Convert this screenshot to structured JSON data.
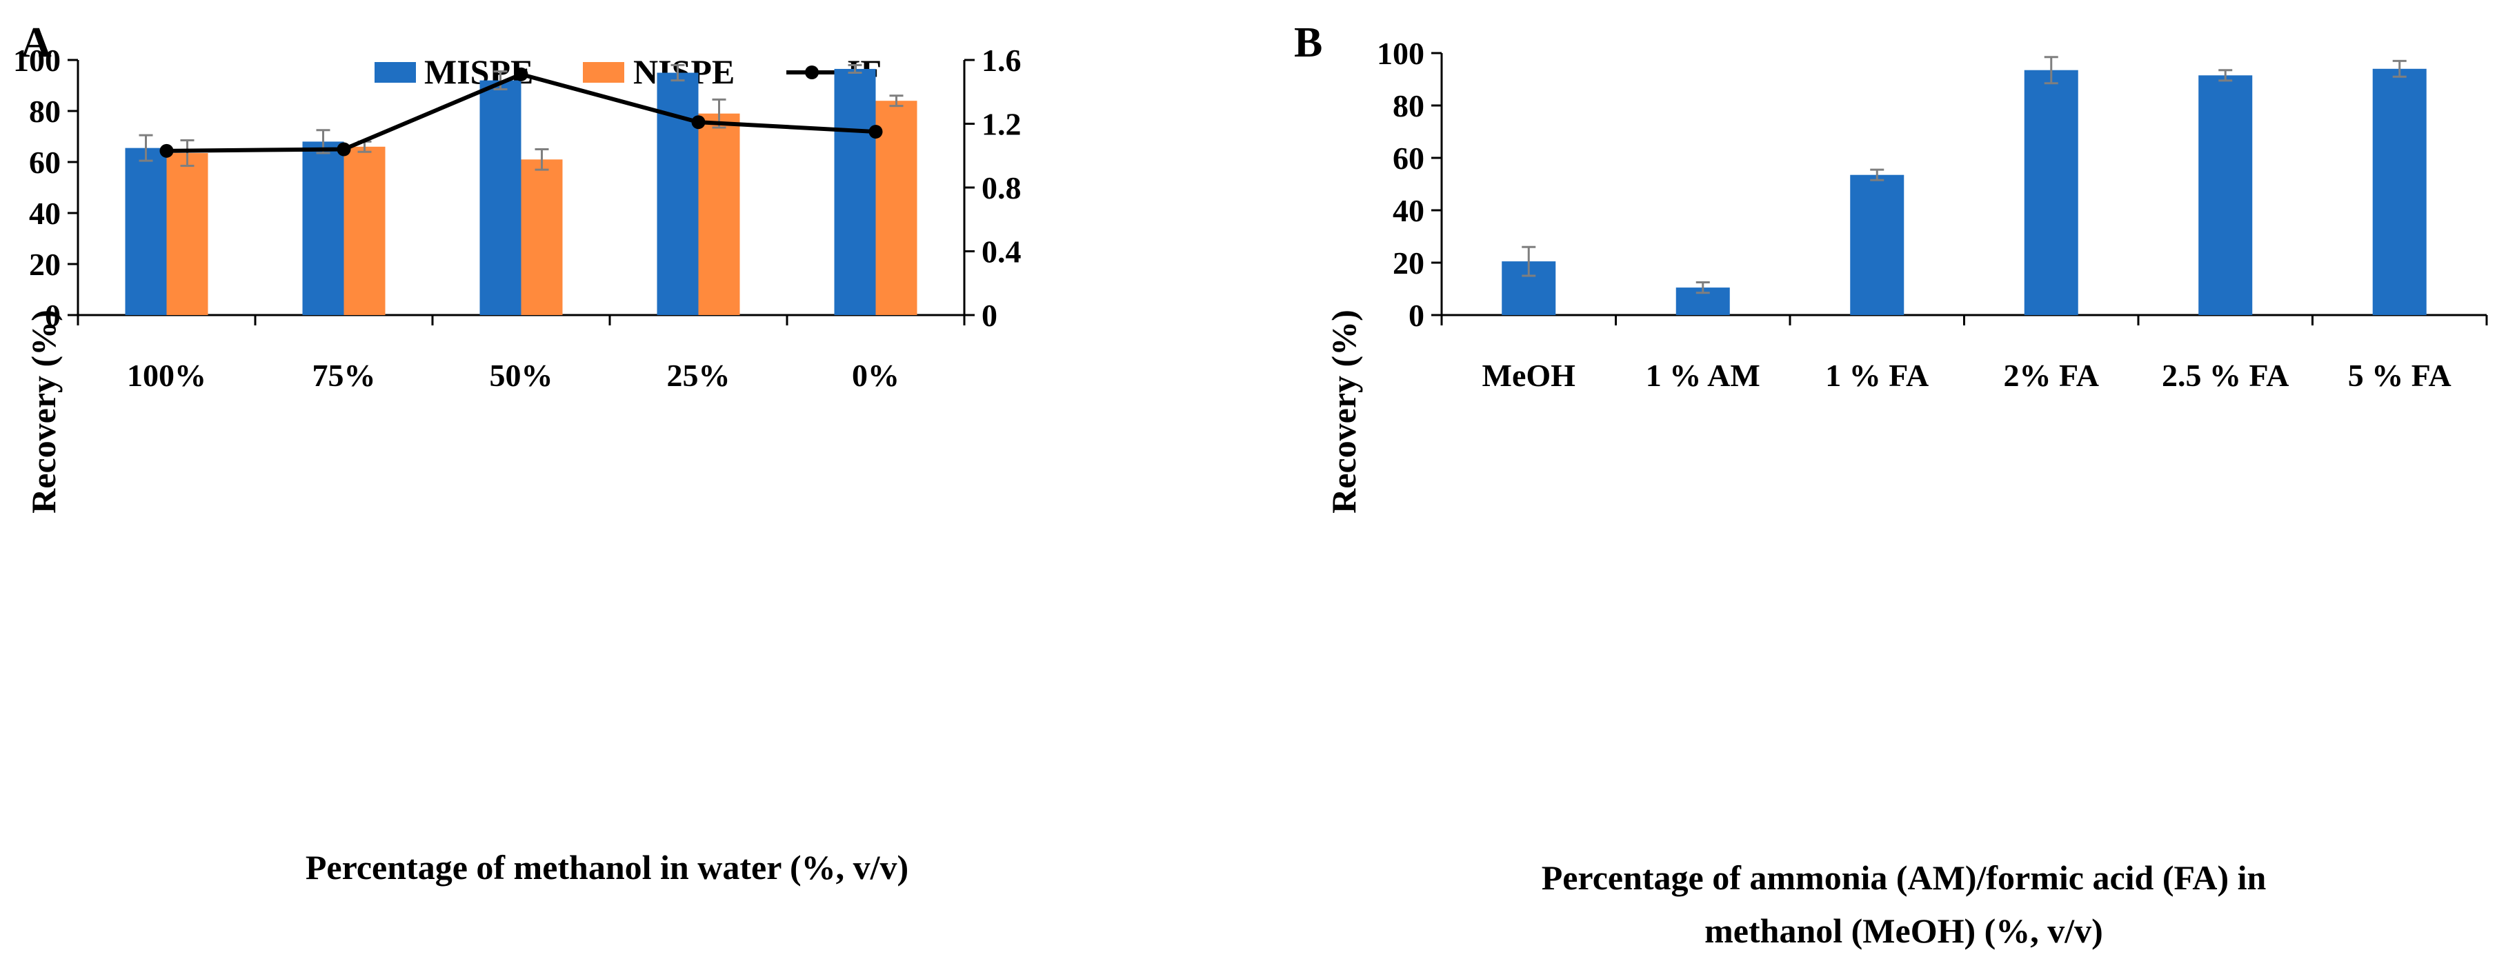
{
  "colors": {
    "mispe": "#1F6FC2",
    "nispe": "#FF8A3D",
    "if_line": "#000000",
    "bar_b": "#1F6FC2",
    "error_bar": "#7F7F7F",
    "axis": "#000000"
  },
  "chart_data": [
    {
      "panel_label": "A",
      "type": "bar",
      "title": "",
      "categories": [
        "100%",
        "75%",
        "50%",
        "25%",
        "0%"
      ],
      "series": [
        {
          "name": "MISPE",
          "values": [
            65.5,
            68,
            92,
            95,
            96.5
          ],
          "errors": [
            5,
            4.5,
            3.5,
            3,
            1.5
          ]
        },
        {
          "name": "NISPE",
          "values": [
            63.5,
            66,
            61,
            79,
            84
          ],
          "errors": [
            5,
            2,
            4,
            5.5,
            2
          ]
        }
      ],
      "line_series": {
        "name": "IF",
        "axis": "right",
        "values": [
          1.03,
          1.04,
          1.51,
          1.21,
          1.15
        ]
      },
      "legend": [
        "MISPE",
        "NISPE",
        "IF"
      ],
      "xlabel": "Percentage of methanol in water (%, v/v)",
      "ylabel": "Recovery (%)",
      "ylim": [
        0,
        100
      ],
      "yticks": [
        "0",
        "20",
        "40",
        "60",
        "80",
        "100"
      ],
      "y2lim": [
        0,
        1.6
      ],
      "y2ticks": [
        "0",
        "0.4",
        "0.8",
        "1.2",
        "1.6"
      ]
    },
    {
      "panel_label": "B",
      "type": "bar",
      "title": "",
      "categories": [
        "MeOH",
        "1 % AM",
        "1 % FA",
        "2% FA",
        "2.5 % FA",
        "5 % FA"
      ],
      "values": [
        20.5,
        10.5,
        53.5,
        93.5,
        91.5,
        94
      ],
      "errors": [
        5.5,
        2,
        2,
        5,
        2,
        3
      ],
      "xlabel_lines": [
        "Percentage of ammonia (AM)/formic  acid (FA) in",
        "methanol (MeOH) (%, v/v)"
      ],
      "ylabel": "Recovery (%)",
      "ylim": [
        0,
        100
      ],
      "yticks": [
        "0",
        "20",
        "40",
        "60",
        "80",
        "100"
      ]
    }
  ]
}
